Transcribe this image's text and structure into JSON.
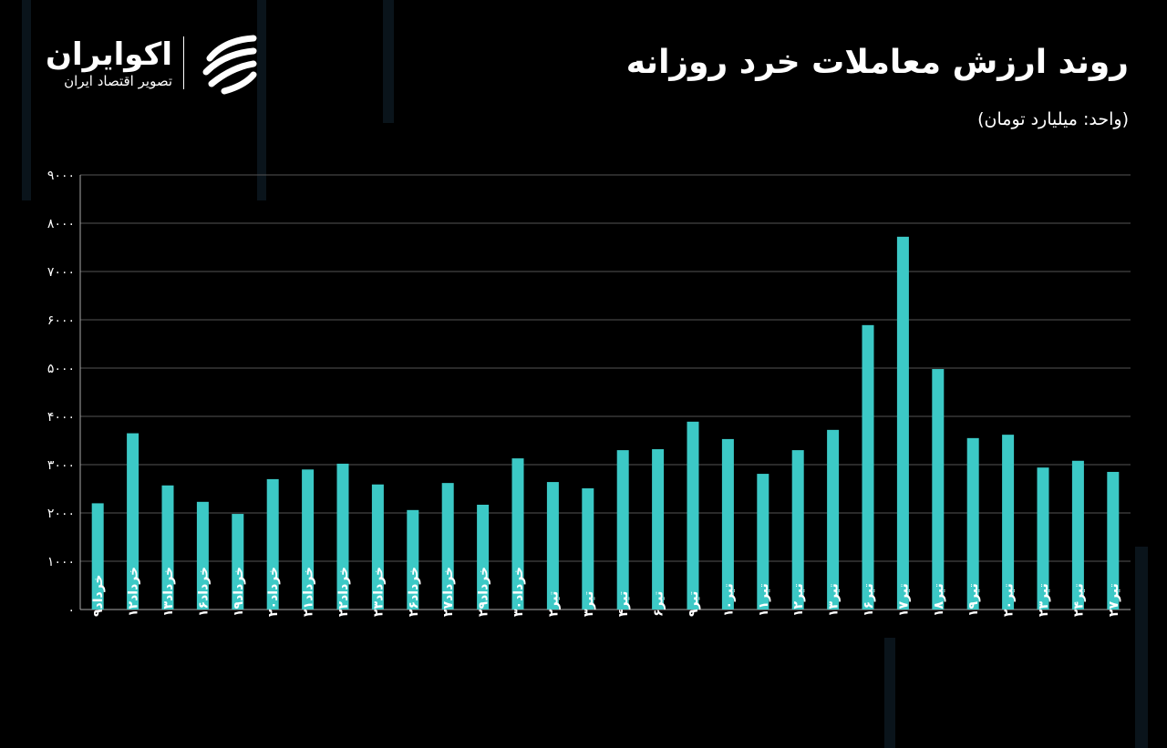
{
  "header": {
    "title": "روند ارزش معاملات خرد روزانه",
    "unit": "(واحد: میلیارد تومان)"
  },
  "logo": {
    "name": "اکوایران",
    "tagline": "تصویر اقتصاد ایران"
  },
  "colors": {
    "bar": "#3cc9c6",
    "grid": "#555555",
    "background": "#000000"
  },
  "chart_data": {
    "type": "bar",
    "title": "روند ارزش معاملات خرد روزانه",
    "ylabel": "میلیارد تومان",
    "ylim": [
      0,
      9000
    ],
    "yticks": [
      0,
      1000,
      2000,
      3000,
      4000,
      5000,
      6000,
      7000,
      8000,
      9000
    ],
    "ytick_labels": [
      "۰",
      "۱۰۰۰",
      "۲۰۰۰",
      "۳۰۰۰",
      "۴۰۰۰",
      "۵۰۰۰",
      "۶۰۰۰",
      "۷۰۰۰",
      "۸۰۰۰",
      "۹۰۰۰"
    ],
    "grid": true,
    "categories": [
      "خرداد۹",
      "خرداد۱۲",
      "خرداد۱۳",
      "خرداد۱۶",
      "خرداد۱۹",
      "خرداد۲۰",
      "خرداد۲۱",
      "خرداد۲۲",
      "خرداد۲۳",
      "خرداد۲۶",
      "خرداد۲۷",
      "خرداد۲۹",
      "خرداد۳۰",
      "تیر۲",
      "تیر۳",
      "تیر۴",
      "تیر۶",
      "تیر۹",
      "تیر۱۰",
      "تیر۱۱",
      "تیر۱۲",
      "تیر۱۳",
      "تیر۱۶",
      "تیر۱۷",
      "تیر۱۸",
      "تیر۱۹",
      "تیر۲۰",
      "تیر۲۳",
      "تیر۲۴",
      "تیر۲۷"
    ],
    "values": [
      2200,
      3650,
      2570,
      2230,
      1980,
      2700,
      2900,
      3020,
      2590,
      2060,
      2620,
      2170,
      3130,
      2640,
      2510,
      3300,
      3320,
      3890,
      3530,
      2810,
      3300,
      3720,
      5890,
      7720,
      4980,
      3550,
      3620,
      2940,
      3080,
      2850
    ]
  }
}
